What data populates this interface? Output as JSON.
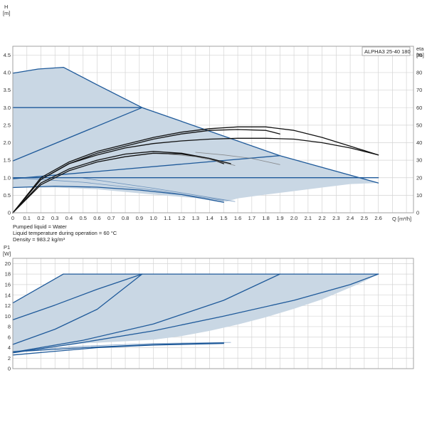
{
  "model_label": "ALPHA3 25-40 180",
  "notes": [
    "Pumped liquid = Water",
    "Liquid temperature during operation = 60 °C",
    "Density = 983.2 kg/m³"
  ],
  "colors": {
    "area": "#c9d7e4",
    "curve": "#1f5a9a",
    "eta": "#111111",
    "grid": "#d4d4d4",
    "frame": "#999999"
  },
  "chart_data": [
    {
      "type": "line",
      "name": "head",
      "xlabel": "Q [m³/h]",
      "ylabel_line1": "H",
      "ylabel_line2": "[m]",
      "y2label_line1": "eta",
      "y2label_line2": "[%]",
      "xlim": [
        0,
        2.85
      ],
      "ylim": [
        0,
        4.75
      ],
      "y2lim": [
        0,
        95
      ],
      "xticks": [
        "0",
        "0.1",
        "0.2",
        "0.3",
        "0.4",
        "0.5",
        "0.6",
        "0.7",
        "0.8",
        "0.9",
        "1.0",
        "1.1",
        "1.2",
        "1.3",
        "1.4",
        "1.5",
        "1.6",
        "1.7",
        "1.8",
        "1.9",
        "2.0",
        "2.1",
        "2.2",
        "2.3",
        "2.4",
        "2.5",
        "2.6"
      ],
      "yticks": [
        "0",
        "0.5",
        "1.0",
        "1.5",
        "2.0",
        "2.5",
        "3.0",
        "3.5",
        "4.0",
        "4.5"
      ],
      "y2ticks": [
        "0",
        "10",
        "20",
        "30",
        "40",
        "50",
        "60",
        "70",
        "80",
        "90"
      ],
      "grid": true,
      "area": [
        [
          0,
          0.72
        ],
        [
          0,
          3.98
        ],
        [
          0.18,
          4.1
        ],
        [
          0.36,
          4.15
        ],
        [
          0.6,
          3.65
        ],
        [
          0.92,
          3.0
        ],
        [
          1.9,
          1.63
        ],
        [
          2.6,
          0.85
        ],
        [
          2.4,
          0.82
        ],
        [
          2.2,
          0.72
        ],
        [
          2.0,
          0.62
        ],
        [
          1.8,
          0.52
        ],
        [
          1.6,
          0.41
        ],
        [
          1.52,
          0.32
        ],
        [
          1.3,
          0.42
        ],
        [
          1.0,
          0.52
        ],
        [
          0.6,
          0.67
        ],
        [
          0.3,
          0.72
        ],
        [
          0,
          0.72
        ]
      ],
      "series": [
        {
          "name": "",
          "role": "pump",
          "points": [
            [
              0,
              3.98
            ],
            [
              0.18,
              4.1
            ],
            [
              0.36,
              4.15
            ],
            [
              0.6,
              3.65
            ],
            [
              0.92,
              3.0
            ],
            [
              1.9,
              1.63
            ],
            [
              2.6,
              0.85
            ]
          ]
        },
        {
          "name": "",
          "role": "pump",
          "points": [
            [
              0,
              3.0
            ],
            [
              0.92,
              3.0
            ]
          ]
        },
        {
          "name": "",
          "role": "pump",
          "points": [
            [
              0,
              1.48
            ],
            [
              0.92,
              3.0
            ]
          ]
        },
        {
          "name": "",
          "role": "pump",
          "points": [
            [
              0,
              0.97
            ],
            [
              1.9,
              1.63
            ]
          ]
        },
        {
          "name": "",
          "role": "pump",
          "points": [
            [
              0,
              1.0
            ],
            [
              2.6,
              1.0
            ]
          ]
        },
        {
          "name": "",
          "role": "pump",
          "points": [
            [
              0,
              0.72
            ],
            [
              0.3,
              0.76
            ],
            [
              0.6,
              0.73
            ],
            [
              0.9,
              0.65
            ],
            [
              1.2,
              0.52
            ],
            [
              1.5,
              0.3
            ]
          ]
        },
        {
          "name": "",
          "role": "pump-light",
          "points": [
            [
              0,
              1.0
            ],
            [
              0.5,
              0.87
            ],
            [
              1.0,
              0.65
            ],
            [
              1.5,
              0.35
            ]
          ]
        },
        {
          "name": "",
          "role": "pump-light",
          "points": [
            [
              0.5,
              0.99
            ],
            [
              1.0,
              0.7
            ],
            [
              1.58,
              0.32
            ]
          ]
        },
        {
          "name": "",
          "role": "eta",
          "points": [
            [
              0,
              0
            ],
            [
              0.2,
              20
            ],
            [
              0.4,
              29
            ],
            [
              0.6,
              35
            ],
            [
              0.8,
              39
            ],
            [
              1.0,
              43
            ],
            [
              1.2,
              46
            ],
            [
              1.4,
              48
            ],
            [
              1.6,
              49
            ],
            [
              1.8,
              49
            ],
            [
              2.0,
              47
            ],
            [
              2.2,
              43
            ],
            [
              2.4,
              38
            ],
            [
              2.6,
              33
            ]
          ]
        },
        {
          "name": "",
          "role": "eta",
          "points": [
            [
              0,
              0
            ],
            [
              0.2,
              19
            ],
            [
              0.4,
              28
            ],
            [
              0.6,
              34
            ],
            [
              0.8,
              38
            ],
            [
              1.0,
              42
            ],
            [
              1.2,
              45
            ],
            [
              1.4,
              47
            ],
            [
              1.6,
              47.5
            ],
            [
              1.8,
              47
            ],
            [
              1.9,
              45
            ]
          ]
        },
        {
          "name": "",
          "role": "eta",
          "points": [
            [
              0,
              0
            ],
            [
              0.2,
              19
            ],
            [
              0.4,
              28
            ],
            [
              0.6,
              33
            ],
            [
              0.8,
              37
            ],
            [
              1.0,
              39.5
            ],
            [
              1.2,
              41
            ],
            [
              1.4,
              42
            ],
            [
              1.6,
              42.5
            ],
            [
              1.8,
              42.5
            ],
            [
              2.0,
              42
            ],
            [
              2.2,
              40
            ],
            [
              2.4,
              37
            ],
            [
              2.6,
              33
            ]
          ]
        },
        {
          "name": "",
          "role": "eta",
          "points": [
            [
              0,
              0
            ],
            [
              0.2,
              17
            ],
            [
              0.4,
              25
            ],
            [
              0.6,
              30
            ],
            [
              0.8,
              33.5
            ],
            [
              1.0,
              35
            ],
            [
              1.2,
              34
            ],
            [
              1.4,
              31
            ],
            [
              1.5,
              28
            ]
          ]
        },
        {
          "name": "",
          "role": "eta",
          "points": [
            [
              0,
              0
            ],
            [
              0.2,
              16
            ],
            [
              0.4,
              24
            ],
            [
              0.6,
              29
            ],
            [
              0.8,
              32
            ],
            [
              1.0,
              34
            ],
            [
              1.2,
              33.5
            ],
            [
              1.4,
              31
            ],
            [
              1.55,
              28
            ]
          ]
        },
        {
          "name": "",
          "role": "eta-light",
          "points": [
            [
              1.1,
              33.5
            ],
            [
              1.3,
              32
            ],
            [
              1.45,
              29.5
            ],
            [
              1.58,
              27
            ]
          ]
        },
        {
          "name": "",
          "role": "eta-light",
          "points": [
            [
              1.3,
              34.5
            ],
            [
              1.5,
              33
            ],
            [
              1.7,
              31
            ],
            [
              1.9,
              27.5
            ]
          ]
        }
      ]
    },
    {
      "type": "line",
      "name": "power",
      "ylabel_line1": "P1",
      "ylabel_line2": "[W]",
      "xlim": [
        0,
        2.85
      ],
      "ylim": [
        0,
        21
      ],
      "yticks": [
        "0",
        "2",
        "4",
        "6",
        "8",
        "10",
        "12",
        "14",
        "16",
        "18",
        "20"
      ],
      "grid": true,
      "area": [
        [
          0,
          3.1
        ],
        [
          0,
          12.5
        ],
        [
          0.36,
          18.0
        ],
        [
          2.6,
          18.0
        ],
        [
          2.55,
          17.3
        ],
        [
          2.45,
          16.0
        ],
        [
          2.2,
          13.2
        ],
        [
          2.0,
          11.4
        ],
        [
          1.8,
          9.8
        ],
        [
          1.6,
          8.4
        ],
        [
          1.4,
          7.2
        ],
        [
          1.2,
          6.2
        ],
        [
          1.0,
          5.5
        ],
        [
          0.5,
          4.8
        ],
        [
          0,
          3.1
        ]
      ],
      "series": [
        {
          "name": "",
          "role": "pump",
          "points": [
            [
              0,
              12.5
            ],
            [
              0.36,
              18.0
            ]
          ]
        },
        {
          "name": "",
          "role": "pump",
          "points": [
            [
              0.36,
              18.0
            ],
            [
              2.6,
              18.0
            ]
          ]
        },
        {
          "name": "",
          "role": "pump",
          "points": [
            [
              0,
              9.3
            ],
            [
              0.3,
              12.1
            ],
            [
              0.6,
              15.1
            ],
            [
              0.92,
              18.0
            ]
          ]
        },
        {
          "name": "",
          "role": "pump",
          "points": [
            [
              0,
              4.6
            ],
            [
              0.3,
              7.5
            ],
            [
              0.6,
              11.3
            ],
            [
              0.92,
              18.0
            ]
          ]
        },
        {
          "name": "",
          "role": "pump",
          "points": [
            [
              0,
              3.1
            ],
            [
              0.5,
              5.4
            ],
            [
              1.0,
              8.5
            ],
            [
              1.5,
              13.0
            ],
            [
              1.9,
              18.0
            ]
          ]
        },
        {
          "name": "",
          "role": "pump",
          "points": [
            [
              0,
              3.0
            ],
            [
              0.5,
              5.0
            ],
            [
              1.0,
              7.2
            ],
            [
              1.5,
              10.0
            ],
            [
              2.0,
              13.0
            ],
            [
              2.4,
              16.0
            ],
            [
              2.6,
              18.0
            ]
          ]
        },
        {
          "name": "",
          "role": "pump",
          "points": [
            [
              0,
              3.2
            ],
            [
              0.5,
              4.0
            ],
            [
              1.0,
              4.6
            ],
            [
              1.5,
              4.9
            ]
          ]
        },
        {
          "name": "",
          "role": "pump",
          "points": [
            [
              0,
              2.6
            ],
            [
              0.3,
              3.3
            ],
            [
              0.6,
              4.0
            ],
            [
              1.0,
              4.5
            ],
            [
              1.5,
              4.8
            ]
          ]
        },
        {
          "name": "",
          "role": "pump-light",
          "points": [
            [
              0,
              3.3
            ],
            [
              0.5,
              4.3
            ],
            [
              1.0,
              4.8
            ],
            [
              1.55,
              5.0
            ]
          ]
        }
      ]
    }
  ]
}
